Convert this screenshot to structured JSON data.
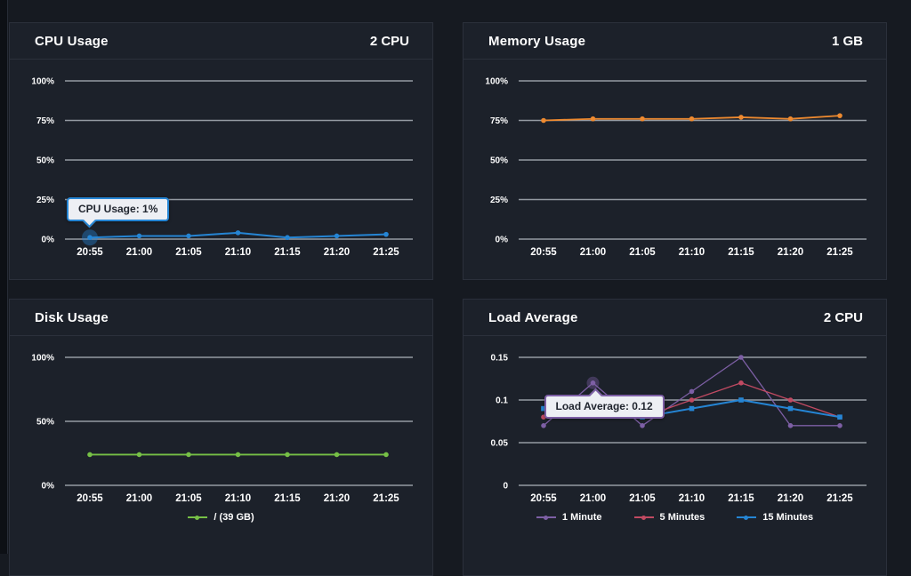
{
  "page": {
    "bg": "#161a21",
    "panel_bg": "#1c212a",
    "panel_border": "#2b303b",
    "grid_color": "#949aa2",
    "text_color": "#ffffff",
    "tooltip_bg": "#edeff4",
    "tooltip_text_color": "#1f242e"
  },
  "chart_data": [
    {
      "type": "line",
      "title": "CPU Usage",
      "unit_label": "2 CPU",
      "x": [
        "20:55",
        "21:00",
        "21:05",
        "21:10",
        "21:15",
        "21:20",
        "21:25"
      ],
      "yticks": [
        "100%",
        "75%",
        "50%",
        "25%",
        "0%"
      ],
      "ylim": [
        0,
        100
      ],
      "grid": true,
      "legend_position": "none",
      "series": [
        {
          "name": "CPU Usage",
          "color": "#2585d4",
          "width": 2,
          "marker": "circle",
          "values": [
            1,
            2,
            2,
            4,
            1,
            2,
            3
          ]
        }
      ],
      "tooltip": {
        "text": "CPU Usage: 1%",
        "series": 0,
        "point": 0,
        "placement": "above",
        "highlight_radius": 9
      }
    },
    {
      "type": "line",
      "title": "Memory Usage",
      "unit_label": "1 GB",
      "x": [
        "20:55",
        "21:00",
        "21:05",
        "21:10",
        "21:15",
        "21:20",
        "21:25"
      ],
      "yticks": [
        "100%",
        "75%",
        "50%",
        "25%",
        "0%"
      ],
      "ylim": [
        0,
        100
      ],
      "grid": true,
      "legend_position": "none",
      "series": [
        {
          "name": "Memory Usage",
          "color": "#ee8a30",
          "width": 1.8,
          "marker": "circle",
          "values": [
            75,
            76,
            76,
            76,
            77,
            76,
            78
          ]
        }
      ]
    },
    {
      "type": "line",
      "title": "Disk Usage",
      "unit_label": "",
      "x": [
        "20:55",
        "21:00",
        "21:05",
        "21:10",
        "21:15",
        "21:20",
        "21:25"
      ],
      "yticks": [
        "100%",
        "50%",
        "0%"
      ],
      "ylim": [
        0,
        100
      ],
      "grid": true,
      "legend_position": "bottom",
      "series": [
        {
          "name": "/ (39 GB)",
          "color": "#76c046",
          "width": 1.8,
          "marker": "circle",
          "values": [
            24,
            24,
            24,
            24,
            24,
            24,
            24
          ]
        }
      ],
      "legend": [
        {
          "label": "/ (39 GB)",
          "color": "#76c046"
        }
      ]
    },
    {
      "type": "line",
      "title": "Load Average",
      "unit_label": "2 CPU",
      "x": [
        "20:55",
        "21:00",
        "21:05",
        "21:10",
        "21:15",
        "21:20",
        "21:25"
      ],
      "yticks": [
        "0.15",
        "0.1",
        "0.05",
        "0"
      ],
      "ylim": [
        0,
        0.15
      ],
      "grid": true,
      "legend_position": "bottom",
      "series": [
        {
          "name": "1 Minute",
          "color": "#7d5fa5",
          "width": 1.3,
          "marker": "circle",
          "values": [
            0.07,
            0.12,
            0.07,
            0.11,
            0.15,
            0.07,
            0.07
          ]
        },
        {
          "name": "5 Minutes",
          "color": "#c14a62",
          "width": 1.3,
          "marker": "circle",
          "values": [
            0.08,
            0.09,
            0.08,
            0.1,
            0.12,
            0.1,
            0.08
          ]
        },
        {
          "name": "15 Minutes",
          "color": "#2585d4",
          "width": 2,
          "marker": "square",
          "values": [
            0.09,
            0.09,
            0.08,
            0.09,
            0.1,
            0.09,
            0.08
          ]
        }
      ],
      "tooltip": {
        "text": "Load Average: 0.12",
        "series": 0,
        "point": 1,
        "placement": "below",
        "highlight_radius": 7
      },
      "legend": [
        {
          "label": "1 Minute",
          "color": "#7d5fa5"
        },
        {
          "label": "5 Minutes",
          "color": "#c14a62"
        },
        {
          "label": "15 Minutes",
          "color": "#2585d4"
        }
      ]
    }
  ]
}
